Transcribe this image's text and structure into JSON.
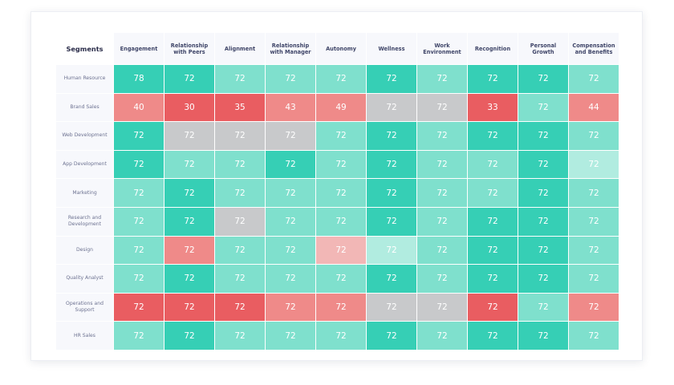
{
  "chart_data": {
    "type": "heatmap",
    "corner_label": "Segments",
    "columns": [
      "Engagement",
      "Relationship with Peers",
      "Alignment",
      "Relationship with Manager",
      "Autonomy",
      "Wellness",
      "Work Environment",
      "Recognition",
      "Personal Growth",
      "Compensation and Benefits"
    ],
    "rows": [
      {
        "segment": "Human Resource",
        "values": [
          78,
          72,
          72,
          72,
          72,
          72,
          72,
          72,
          72,
          72
        ],
        "levels": [
          "teal",
          "teal",
          "mint",
          "mint",
          "mint",
          "teal",
          "mint",
          "teal",
          "teal",
          "mint"
        ]
      },
      {
        "segment": "Brand Sales",
        "values": [
          40,
          30,
          35,
          43,
          49,
          72,
          72,
          33,
          72,
          44
        ],
        "levels": [
          "salmon",
          "red",
          "red",
          "salmon",
          "salmon",
          "grey",
          "grey",
          "red",
          "mint",
          "salmon"
        ]
      },
      {
        "segment": "Web Development",
        "values": [
          72,
          72,
          72,
          72,
          72,
          72,
          72,
          72,
          72,
          72
        ],
        "levels": [
          "teal",
          "grey",
          "grey",
          "grey",
          "mint",
          "teal",
          "mint",
          "teal",
          "teal",
          "mint"
        ]
      },
      {
        "segment": "App Development",
        "values": [
          72,
          72,
          72,
          72,
          72,
          72,
          72,
          72,
          72,
          72
        ],
        "levels": [
          "teal",
          "mint",
          "mint",
          "teal",
          "mint",
          "teal",
          "mint",
          "mint",
          "teal",
          "pale"
        ]
      },
      {
        "segment": "Marketing",
        "values": [
          72,
          72,
          72,
          72,
          72,
          72,
          72,
          72,
          72,
          72
        ],
        "levels": [
          "mint",
          "teal",
          "mint",
          "mint",
          "mint",
          "teal",
          "mint",
          "mint",
          "teal",
          "mint"
        ]
      },
      {
        "segment": "Research and Development",
        "values": [
          72,
          72,
          72,
          72,
          72,
          72,
          72,
          72,
          72,
          72
        ],
        "levels": [
          "mint",
          "teal",
          "grey",
          "mint",
          "mint",
          "teal",
          "mint",
          "teal",
          "teal",
          "mint"
        ]
      },
      {
        "segment": "Design",
        "values": [
          72,
          72,
          72,
          72,
          72,
          72,
          72,
          72,
          72,
          72
        ],
        "levels": [
          "mint",
          "salmon",
          "mint",
          "mint",
          "pink",
          "pale",
          "mint",
          "teal",
          "teal",
          "mint"
        ]
      },
      {
        "segment": "Quality Analyst",
        "values": [
          72,
          72,
          72,
          72,
          72,
          72,
          72,
          72,
          72,
          72
        ],
        "levels": [
          "mint",
          "teal",
          "mint",
          "mint",
          "mint",
          "teal",
          "mint",
          "teal",
          "teal",
          "mint"
        ]
      },
      {
        "segment": "Operations and Support",
        "values": [
          72,
          72,
          72,
          72,
          72,
          72,
          72,
          72,
          72,
          72
        ],
        "levels": [
          "red",
          "red",
          "red",
          "salmon",
          "salmon",
          "grey",
          "grey",
          "red",
          "mint",
          "salmon"
        ]
      },
      {
        "segment": "HR Sales",
        "values": [
          72,
          72,
          72,
          72,
          72,
          72,
          72,
          72,
          72,
          72
        ],
        "levels": [
          "mint",
          "teal",
          "mint",
          "mint",
          "mint",
          "teal",
          "mint",
          "teal",
          "teal",
          "mint"
        ]
      }
    ]
  },
  "colors": {
    "teal": "#36cfb5",
    "mint": "#7fe0cd",
    "pale": "#b1ece0",
    "grey": "#c8c9cb",
    "red": "#e95d61",
    "salmon": "#ef8a89",
    "pink": "#f2b7b6"
  }
}
